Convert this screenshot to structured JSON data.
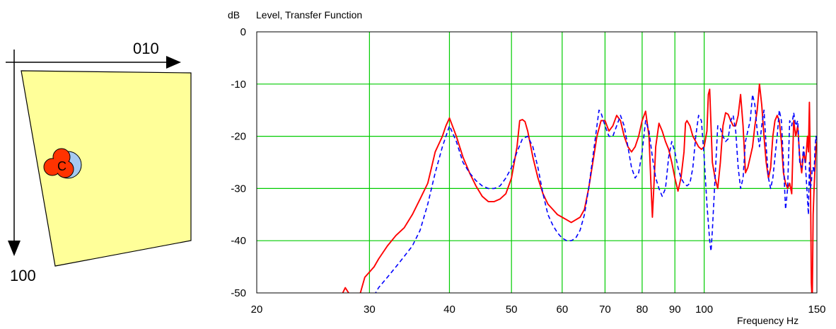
{
  "room_diagram": {
    "axis_x_label": "010",
    "axis_y_label": "100",
    "source_label": "C",
    "room_fill": "#ffff99",
    "source_color": "#ff3300",
    "receiver_color": "#a6caf0"
  },
  "chart_data": {
    "type": "line",
    "title": "Level, Transfer Function",
    "ylabel": "dB",
    "xlabel": "Frequency  Hz",
    "xscale": "log",
    "xlim": [
      20,
      150
    ],
    "ylim": [
      -50,
      0
    ],
    "x_ticks": [
      20,
      30,
      40,
      50,
      60,
      70,
      80,
      90,
      100,
      150
    ],
    "y_ticks": [
      0,
      -10,
      -20,
      -30,
      -40,
      -50
    ],
    "grid": true,
    "grid_color": "#00cc00",
    "series": [
      {
        "color": "#ff0000",
        "style": "solid",
        "points": [
          [
            27,
            -51
          ],
          [
            27.5,
            -49
          ],
          [
            28,
            -50.5
          ],
          [
            29,
            -50.2
          ],
          [
            29.5,
            -47
          ],
          [
            30,
            -46
          ],
          [
            30.5,
            -45
          ],
          [
            31,
            -43.5
          ],
          [
            32,
            -41
          ],
          [
            33,
            -39
          ],
          [
            34,
            -37.5
          ],
          [
            35,
            -35
          ],
          [
            36,
            -32
          ],
          [
            37,
            -29
          ],
          [
            37.5,
            -26
          ],
          [
            38,
            -23
          ],
          [
            39,
            -20
          ],
          [
            39.5,
            -18
          ],
          [
            40,
            -16.5
          ],
          [
            41,
            -20
          ],
          [
            42,
            -24
          ],
          [
            43,
            -27
          ],
          [
            44,
            -29.5
          ],
          [
            45,
            -31.5
          ],
          [
            46,
            -32.5
          ],
          [
            47,
            -32.5
          ],
          [
            48,
            -32
          ],
          [
            49,
            -31
          ],
          [
            50,
            -28
          ],
          [
            51,
            -22
          ],
          [
            51.5,
            -17
          ],
          [
            52,
            -16.8
          ],
          [
            52.5,
            -17.2
          ],
          [
            53,
            -19
          ],
          [
            54,
            -24
          ],
          [
            55,
            -28
          ],
          [
            56,
            -31
          ],
          [
            57,
            -33
          ],
          [
            58,
            -34
          ],
          [
            59,
            -35
          ],
          [
            60,
            -35.5
          ],
          [
            61,
            -36
          ],
          [
            62,
            -36.5
          ],
          [
            63,
            -36
          ],
          [
            64,
            -35.5
          ],
          [
            65,
            -34
          ],
          [
            66,
            -30
          ],
          [
            67,
            -25
          ],
          [
            68,
            -20
          ],
          [
            69,
            -17
          ],
          [
            70,
            -17
          ],
          [
            71,
            -19
          ],
          [
            72,
            -18
          ],
          [
            73,
            -16
          ],
          [
            74,
            -17
          ],
          [
            75,
            -20
          ],
          [
            76,
            -22
          ],
          [
            77,
            -23
          ],
          [
            78,
            -22
          ],
          [
            79,
            -20
          ],
          [
            80,
            -17
          ],
          [
            81,
            -15.2
          ],
          [
            82,
            -20
          ],
          [
            82.5,
            -28
          ],
          [
            83,
            -35.5
          ],
          [
            83.5,
            -29
          ],
          [
            84,
            -22
          ],
          [
            85,
            -17.5
          ],
          [
            86,
            -19
          ],
          [
            87,
            -21
          ],
          [
            88,
            -22.5
          ],
          [
            89,
            -25
          ],
          [
            90,
            -28
          ],
          [
            91,
            -30.5
          ],
          [
            92,
            -28
          ],
          [
            93,
            -23
          ],
          [
            93.5,
            -17.5
          ],
          [
            94,
            -17
          ],
          [
            95,
            -18
          ],
          [
            96,
            -20
          ],
          [
            97,
            -21
          ],
          [
            98,
            -22
          ],
          [
            99,
            -22.5
          ],
          [
            100,
            -22
          ],
          [
            101,
            -19
          ],
          [
            101.5,
            -12
          ],
          [
            102,
            -11
          ],
          [
            103,
            -25
          ],
          [
            104,
            -28
          ],
          [
            105,
            -30
          ],
          [
            106,
            -25
          ],
          [
            107,
            -18
          ],
          [
            108,
            -15.5
          ],
          [
            109,
            -15.8
          ],
          [
            110,
            -17
          ],
          [
            111,
            -18
          ],
          [
            112,
            -18
          ],
          [
            113,
            -16
          ],
          [
            114,
            -12
          ],
          [
            115,
            -18
          ],
          [
            116,
            -27
          ],
          [
            117,
            -26
          ],
          [
            118,
            -24
          ],
          [
            119,
            -22
          ],
          [
            120,
            -18
          ],
          [
            121,
            -15
          ],
          [
            122,
            -10
          ],
          [
            123,
            -14
          ],
          [
            124,
            -20
          ],
          [
            125,
            -25
          ],
          [
            126,
            -28
          ],
          [
            127,
            -26
          ],
          [
            128,
            -20
          ],
          [
            129,
            -17
          ],
          [
            130,
            -16
          ],
          [
            131,
            -17
          ],
          [
            132,
            -21
          ],
          [
            133,
            -27
          ],
          [
            134,
            -29
          ],
          [
            135,
            -30
          ],
          [
            136,
            -29
          ],
          [
            137,
            -31
          ],
          [
            138,
            -17
          ],
          [
            139,
            -20
          ],
          [
            140,
            -18
          ],
          [
            141,
            -24
          ],
          [
            142,
            -27
          ],
          [
            143,
            -23
          ],
          [
            144,
            -25
          ],
          [
            145,
            -20
          ],
          [
            145.5,
            -23
          ],
          [
            146,
            -13.5
          ],
          [
            146.5,
            -25
          ],
          [
            147,
            -48
          ],
          [
            147.5,
            -52
          ],
          [
            148,
            -35
          ],
          [
            148.5,
            -30
          ],
          [
            149,
            -26
          ],
          [
            149.5,
            -22
          ],
          [
            150,
            -21
          ]
        ]
      },
      {
        "color": "#0000ff",
        "style": "dashed",
        "points": [
          [
            30.5,
            -50.5
          ],
          [
            31,
            -49
          ],
          [
            32,
            -47
          ],
          [
            33,
            -45
          ],
          [
            34,
            -43
          ],
          [
            35,
            -41
          ],
          [
            36,
            -38
          ],
          [
            37,
            -33
          ],
          [
            38,
            -27
          ],
          [
            39,
            -22
          ],
          [
            40,
            -18
          ],
          [
            41,
            -21
          ],
          [
            42,
            -25
          ],
          [
            43,
            -27
          ],
          [
            44,
            -28.5
          ],
          [
            45,
            -29.5
          ],
          [
            46,
            -30
          ],
          [
            47,
            -30
          ],
          [
            48,
            -29.5
          ],
          [
            49,
            -28
          ],
          [
            50,
            -26
          ],
          [
            51,
            -23
          ],
          [
            52,
            -20.5
          ],
          [
            53,
            -20
          ],
          [
            54,
            -22
          ],
          [
            55,
            -26
          ],
          [
            56,
            -31
          ],
          [
            57,
            -35
          ],
          [
            58,
            -37
          ],
          [
            59,
            -38.5
          ],
          [
            60,
            -39.5
          ],
          [
            61,
            -40
          ],
          [
            62,
            -40
          ],
          [
            63,
            -39.5
          ],
          [
            64,
            -38
          ],
          [
            65,
            -35
          ],
          [
            66,
            -30
          ],
          [
            67,
            -24
          ],
          [
            68,
            -18
          ],
          [
            68.5,
            -15
          ],
          [
            69,
            -15.5
          ],
          [
            70,
            -18
          ],
          [
            71,
            -20
          ],
          [
            72,
            -20
          ],
          [
            73,
            -18
          ],
          [
            74,
            -16
          ],
          [
            75,
            -18
          ],
          [
            76,
            -22
          ],
          [
            77,
            -26
          ],
          [
            78,
            -28
          ],
          [
            79,
            -27
          ],
          [
            80,
            -23
          ],
          [
            81,
            -17
          ],
          [
            82,
            -19
          ],
          [
            83,
            -24
          ],
          [
            84,
            -28
          ],
          [
            85,
            -30
          ],
          [
            86,
            -31.5
          ],
          [
            87,
            -30
          ],
          [
            88,
            -24
          ],
          [
            89,
            -21
          ],
          [
            90,
            -23
          ],
          [
            91,
            -26
          ],
          [
            92,
            -28
          ],
          [
            93,
            -29
          ],
          [
            94,
            -29.5
          ],
          [
            95,
            -29
          ],
          [
            96,
            -26
          ],
          [
            97,
            -20
          ],
          [
            98,
            -16
          ],
          [
            99,
            -17
          ],
          [
            100,
            -24
          ],
          [
            101,
            -33
          ],
          [
            102,
            -40
          ],
          [
            102.5,
            -42
          ],
          [
            103,
            -38
          ],
          [
            104,
            -28
          ],
          [
            105,
            -18
          ],
          [
            106,
            -18.5
          ],
          [
            107,
            -20
          ],
          [
            108,
            -21
          ],
          [
            109,
            -20.5
          ],
          [
            110,
            -17
          ],
          [
            111,
            -16
          ],
          [
            112,
            -19
          ],
          [
            113,
            -26
          ],
          [
            114,
            -30
          ],
          [
            115,
            -28
          ],
          [
            116,
            -21
          ],
          [
            117,
            -19
          ],
          [
            118,
            -17
          ],
          [
            119,
            -12
          ],
          [
            120,
            -14
          ],
          [
            121,
            -19
          ],
          [
            122,
            -22
          ],
          [
            123,
            -18
          ],
          [
            124,
            -15
          ],
          [
            125,
            -22
          ],
          [
            126,
            -28
          ],
          [
            127,
            -30
          ],
          [
            128,
            -28
          ],
          [
            129,
            -24
          ],
          [
            130,
            -20
          ],
          [
            131,
            -15
          ],
          [
            132,
            -17
          ],
          [
            133,
            -25
          ],
          [
            134,
            -34
          ],
          [
            135,
            -30
          ],
          [
            136,
            -17
          ],
          [
            137,
            -18
          ],
          [
            138,
            -15.5
          ],
          [
            139,
            -18
          ],
          [
            140,
            -17
          ],
          [
            141,
            -25
          ],
          [
            142,
            -26
          ],
          [
            143,
            -22
          ],
          [
            144,
            -26
          ],
          [
            145,
            -32
          ],
          [
            145.5,
            -35
          ],
          [
            146,
            -25
          ],
          [
            146.5,
            -30
          ],
          [
            147,
            -29
          ],
          [
            147.5,
            -26
          ],
          [
            148,
            -26
          ],
          [
            148.5,
            -27
          ],
          [
            149,
            -22
          ],
          [
            149.5,
            -20
          ],
          [
            150,
            -21
          ]
        ]
      }
    ]
  }
}
